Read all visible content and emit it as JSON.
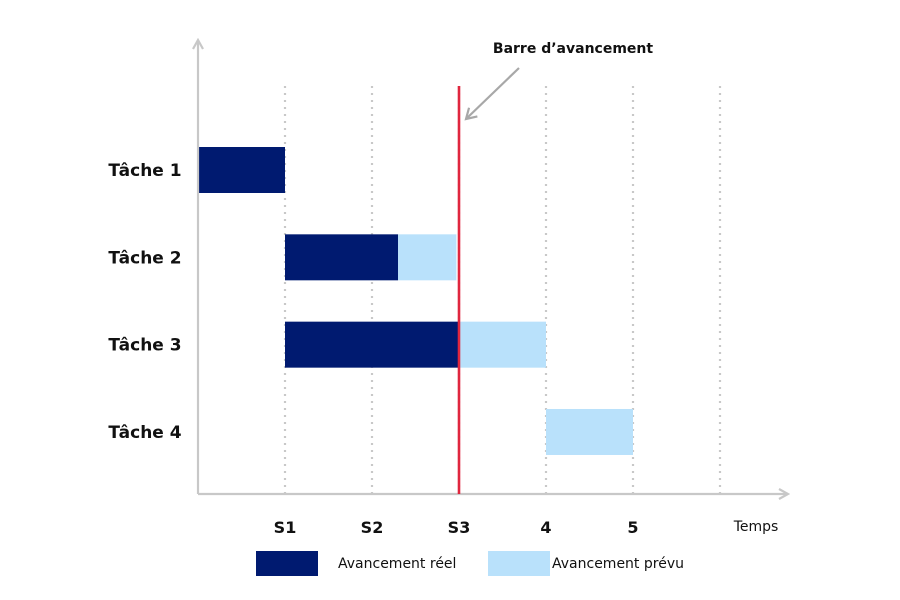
{
  "colors": {
    "actual": "#001a70",
    "planned": "#b9e1fb",
    "progress_line": "#e0263e",
    "axis": "#c8c8c8",
    "grid": "#c8c8c8",
    "arrow": "#a8a8a8",
    "text": "#111111"
  },
  "annotation": {
    "label": "Barre d’avancement"
  },
  "legend": {
    "actual_label": "Avancement réel",
    "planned_label": "Avancement  prévu"
  },
  "chart_data": {
    "type": "gantt",
    "x_ticks": [
      {
        "value": 1,
        "label": "S1"
      },
      {
        "value": 2,
        "label": "S2"
      },
      {
        "value": 3,
        "label": "S3"
      },
      {
        "value": 4,
        "label": "4"
      },
      {
        "value": 5,
        "label": "5"
      }
    ],
    "gridlines_at": [
      1,
      2,
      3,
      4,
      5,
      6
    ],
    "xlabel": "Temps",
    "xlim": [
      0,
      6.8
    ],
    "progress_line_at": 3,
    "tasks": [
      {
        "name": "Tâche 1",
        "actual": [
          0,
          1
        ],
        "planned": null
      },
      {
        "name": "Tâche 2",
        "actual": [
          1,
          2.3
        ],
        "planned": [
          2.3,
          2.97
        ]
      },
      {
        "name": "Tâche 3",
        "actual": [
          1,
          3
        ],
        "planned": [
          3,
          4
        ]
      },
      {
        "name": "Tâche 4",
        "actual": null,
        "planned": [
          4,
          5
        ]
      }
    ]
  }
}
